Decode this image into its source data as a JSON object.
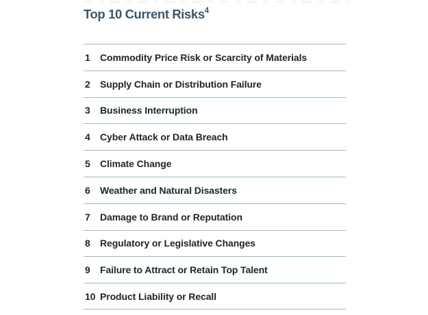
{
  "title": {
    "text": "Top 10 Current Risks",
    "footnote_marker": "4"
  },
  "risk_list": {
    "items": [
      {
        "rank": "1",
        "label": "Commodity Price Risk or Scarcity of Materials"
      },
      {
        "rank": "2",
        "label": "Supply Chain or Distribution Failure"
      },
      {
        "rank": "3",
        "label": "Business Interruption"
      },
      {
        "rank": "4",
        "label": "Cyber Attack or Data Breach"
      },
      {
        "rank": "5",
        "label": "Climate Change"
      },
      {
        "rank": "6",
        "label": "Weather and Natural Disasters"
      },
      {
        "rank": "7",
        "label": "Damage to Brand or Reputation"
      },
      {
        "rank": "8",
        "label": "Regulatory or Legislative Changes"
      },
      {
        "rank": "9",
        "label": "Failure to Attract or Retain Top Talent"
      },
      {
        "rank": "10",
        "label": "Product Liability or Recall"
      }
    ]
  },
  "colors": {
    "background": "#ffffff",
    "title_text": "#3d5668",
    "item_text": "#20242c",
    "divider": "#92bec3"
  }
}
